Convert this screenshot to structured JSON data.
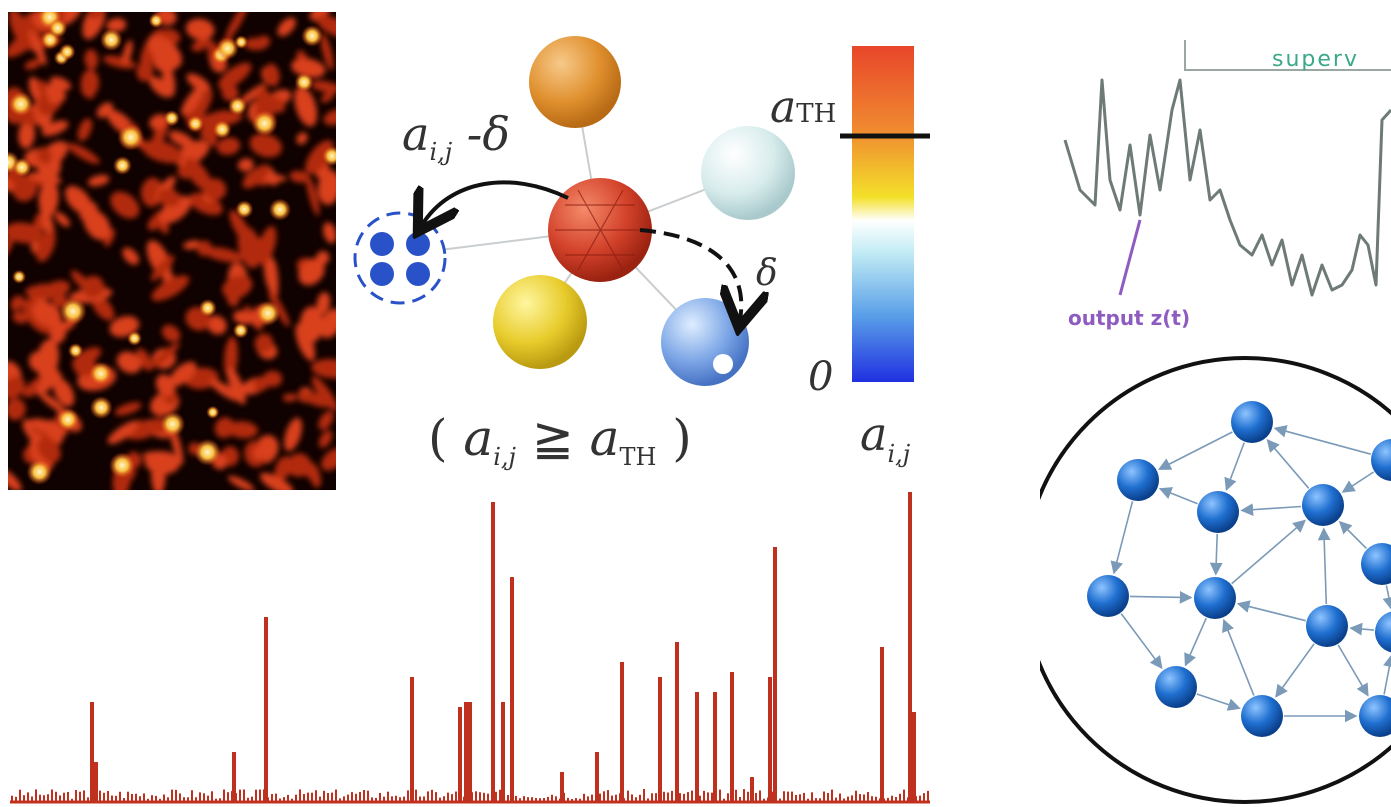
{
  "diagram": {
    "left_arrow_label": "a",
    "left_arrow_sub": "i,j",
    "left_arrow_suffix": " -δ",
    "right_arrow_label": "δ",
    "condition_open": "( ",
    "condition_a": "a",
    "condition_sub_ij": "i,j",
    "condition_rel": " ≧ ",
    "condition_b": "a",
    "condition_sub_th": "TH",
    "condition_close": " )",
    "colorbar_threshold_label": "a",
    "colorbar_threshold_sub": "TH",
    "colorbar_zero": "0",
    "colorbar_axis_label": "a",
    "colorbar_axis_sub": "i,j"
  },
  "timeseries": {
    "top_label": "superv",
    "output_label": "output z(t)",
    "colors": {
      "line": "#6e7a78",
      "top": "#3aa88a",
      "output": "#8e5cc0"
    }
  },
  "colors": {
    "spike": "#c0301e",
    "node": "#1f6fd0",
    "edge": "#7a9ab8"
  }
}
